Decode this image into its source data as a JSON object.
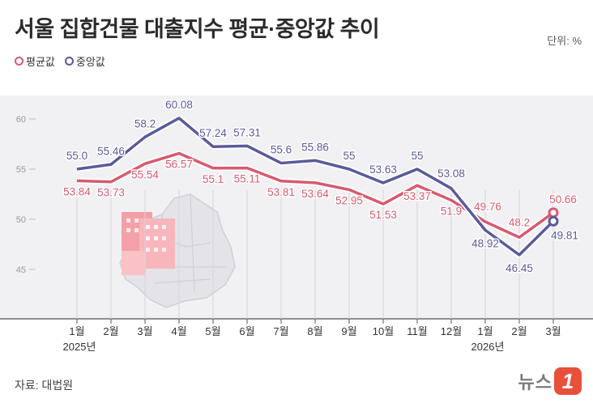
{
  "title": "서울 집합건물 대출지수 평균·중앙값 추이",
  "unit": "단위: %",
  "source": "자료: 대법원",
  "logo": {
    "text": "뉴스",
    "badge": "1"
  },
  "colors": {
    "mean": "#d85a6f",
    "median": "#5a5a9c",
    "plot_bg": "#f1f1f4"
  },
  "chart_data": {
    "type": "line",
    "categories": [
      "1월",
      "2월",
      "3월",
      "4월",
      "5월",
      "6월",
      "7월",
      "8월",
      "9월",
      "10월",
      "11월",
      "12월",
      "1월",
      "2월",
      "3월"
    ],
    "year_labels": [
      {
        "index": 0,
        "label": "2025년"
      },
      {
        "index": 12,
        "label": "2026년"
      }
    ],
    "series": [
      {
        "name": "평균값",
        "color": "#d85a6f",
        "values": [
          53.84,
          53.73,
          55.54,
          56.57,
          55.1,
          55.11,
          53.81,
          53.64,
          52.95,
          51.53,
          53.37,
          51.9,
          49.76,
          48.2,
          50.66
        ],
        "labels": [
          "53.84",
          "53.73",
          "55.54",
          "56.57",
          "55.1",
          "55.11",
          "53.81",
          "53.64",
          "52.95",
          "51.53",
          "53.37",
          "51.9",
          "49.76",
          "48.2",
          "50.66"
        ]
      },
      {
        "name": "중앙값",
        "color": "#5a5a9c",
        "values": [
          55.0,
          55.46,
          58.2,
          60.08,
          57.24,
          57.31,
          55.6,
          55.86,
          55,
          53.63,
          55,
          53.08,
          48.92,
          46.45,
          49.81
        ],
        "labels": [
          "55.0",
          "55.46",
          "58.2",
          "60.08",
          "57.24",
          "57.31",
          "55.6",
          "55.86",
          "55",
          "53.63",
          "55",
          "53.08",
          "48.92",
          "46.45",
          "49.81"
        ]
      }
    ],
    "yticks": [
      "60",
      "55",
      "50",
      "45"
    ],
    "ylim": [
      42.5,
      62.5
    ]
  }
}
